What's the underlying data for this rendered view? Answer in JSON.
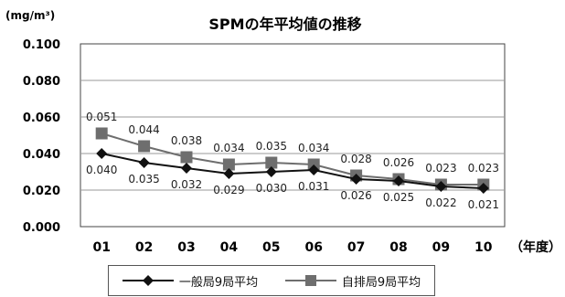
{
  "chart_data": {
    "type": "line",
    "title": "SPMの年平均値の推移",
    "unit_label": "(mg/m³)",
    "x_axis_label": "（年度）",
    "categories": [
      "01",
      "02",
      "03",
      "04",
      "05",
      "06",
      "07",
      "08",
      "09",
      "10"
    ],
    "ylim": [
      0,
      0.1
    ],
    "yticks": [
      "0.000",
      "0.020",
      "0.040",
      "0.060",
      "0.080",
      "0.100"
    ],
    "grid": true,
    "legend_position": "bottom",
    "series": [
      {
        "name": "一般局9局平均",
        "marker": "diamond",
        "color": "#111111",
        "values": [
          0.04,
          0.035,
          0.032,
          0.029,
          0.03,
          0.031,
          0.026,
          0.025,
          0.022,
          0.021
        ],
        "labels": [
          "0.040",
          "0.035",
          "0.032",
          "0.029",
          "0.030",
          "0.031",
          "0.026",
          "0.025",
          "0.022",
          "0.021"
        ]
      },
      {
        "name": "自排局9局平均",
        "marker": "square",
        "color": "#6e6e6e",
        "values": [
          0.051,
          0.044,
          0.038,
          0.034,
          0.035,
          0.034,
          0.028,
          0.026,
          0.023,
          0.023
        ],
        "labels": [
          "0.051",
          "0.044",
          "0.038",
          "0.034",
          "0.035",
          "0.034",
          "0.028",
          "0.026",
          "0.023",
          "0.023"
        ]
      }
    ]
  }
}
